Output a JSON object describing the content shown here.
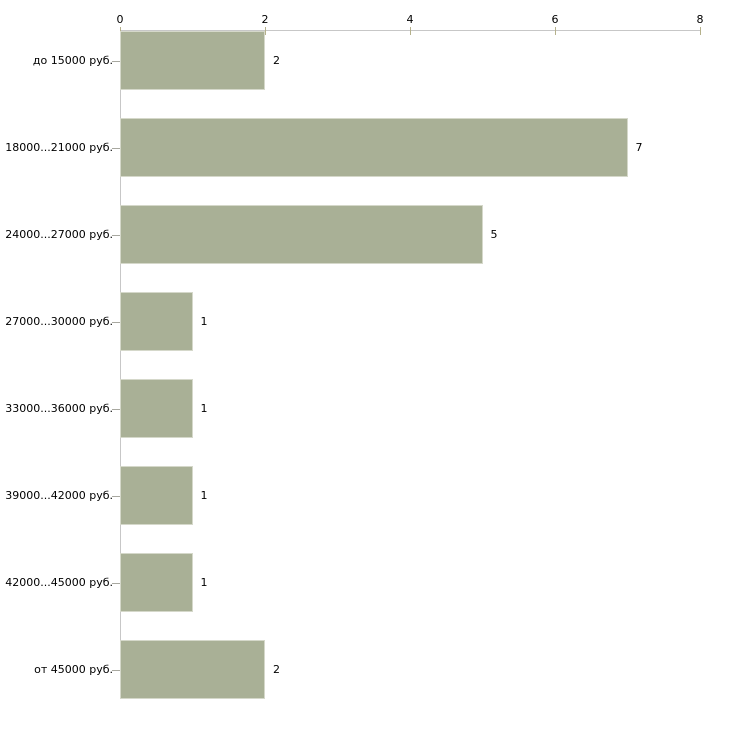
{
  "chart_data": {
    "type": "bar",
    "orientation": "horizontal",
    "title": "",
    "xlabel": "",
    "ylabel": "",
    "categories": [
      "до 15000 руб.",
      "18000...21000 руб.",
      "24000...27000 руб.",
      "27000...30000 руб.",
      "33000...36000 руб.",
      "39000...42000 руб.",
      "42000...45000 руб.",
      "от 45000 руб."
    ],
    "values": [
      2,
      7,
      5,
      1,
      1,
      1,
      1,
      2
    ],
    "x_ticks": [
      0,
      2,
      4,
      6,
      8
    ],
    "xlim": [
      0,
      8
    ],
    "x_axis_position": "top",
    "grid": false,
    "legend_position": "none",
    "bar_color": "#a9b096",
    "bar_border_color": "#d5d8ca",
    "axis_line_color": "#c7c7c7",
    "tick_mark_color": "#b5b18b",
    "text_color": "#000000",
    "background_color": "#ffffff"
  }
}
